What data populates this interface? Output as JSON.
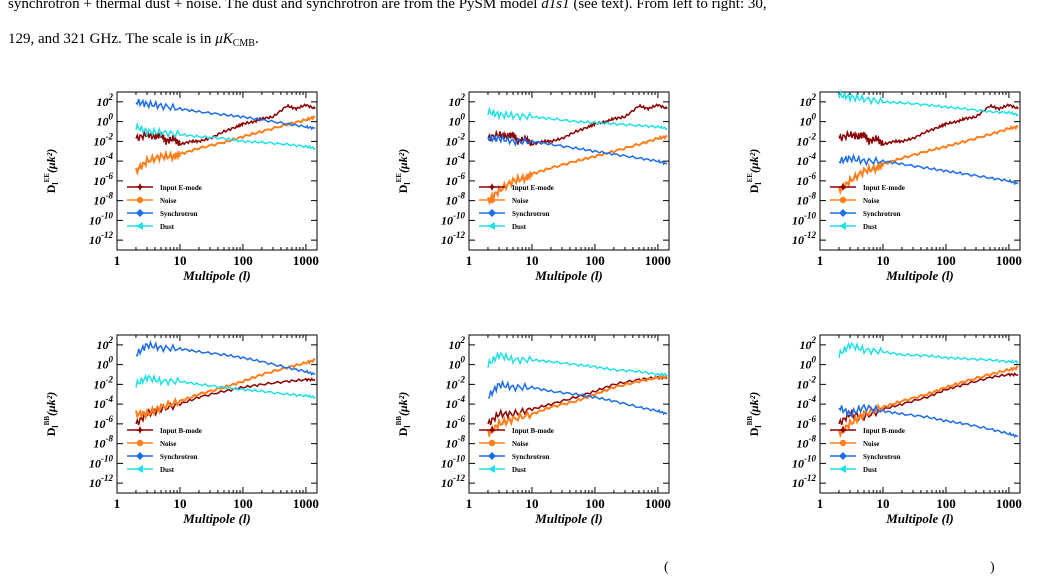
{
  "caption": {
    "line1": "synchrotron + thermal dust + noise. The dust and synchrotron are from the PySM model ",
    "model": "d1s1",
    "line1_tail": " (see text). From left to right: 30,",
    "line2": "129, and 321 GHz. The scale is in ",
    "unit_mu": "μK",
    "unit_sub": "CMB",
    "unit_tail": "."
  },
  "footer": {
    "open_paren": "(",
    "close_paren": ")"
  },
  "axis": {
    "xlabel": "Multipole (l)",
    "xticks": [
      "1",
      "10",
      "100",
      "1000"
    ],
    "yticks": [
      "10^2",
      "10^0",
      "10^-2",
      "10^-4",
      "10^-6",
      "10^-8",
      "10^-10",
      "10^-12"
    ]
  },
  "colors": {
    "input": "#8b0000",
    "noise": "#ff7f1e",
    "synchrotron": "#1e6ee6",
    "dust": "#22e0e6"
  },
  "chart_data": [
    {
      "type": "line",
      "row": "E",
      "ylabel": "D_l^EE(μk²)",
      "xlog": true,
      "ylog": true,
      "xlim": [
        1,
        1500
      ],
      "ylim": [
        1e-13,
        1000.0
      ],
      "legend": [
        "Input E-mode",
        "Noise",
        "Synchrotron",
        "Dust"
      ],
      "series": [
        {
          "name": "Input E-mode",
          "x": [
            2,
            3,
            4,
            5,
            6,
            8,
            10,
            15,
            20,
            30,
            50,
            80,
            100,
            150,
            200,
            300,
            500,
            700,
            1000,
            1400
          ],
          "y": [
            0.02,
            0.05,
            0.03,
            0.05,
            0.01,
            0.02,
            0.005,
            0.01,
            0.01,
            0.02,
            0.1,
            0.3,
            0.6,
            1,
            2,
            3,
            40,
            20,
            50,
            20
          ]
        },
        {
          "name": "Noise",
          "x": [
            2,
            3,
            5,
            8,
            10,
            20,
            50,
            100,
            200,
            500,
            1000,
            1400
          ],
          "y": [
            1e-05,
            0.0001,
            0.0003,
            0.0003,
            0.0005,
            0.002,
            0.008,
            0.03,
            0.1,
            0.5,
            1.5,
            3
          ]
        },
        {
          "name": "Synchrotron",
          "x": [
            2,
            3,
            5,
            10,
            20,
            50,
            100,
            200,
            500,
            1000,
            1400
          ],
          "y": [
            100,
            60,
            40,
            20,
            10,
            5,
            3,
            1.5,
            0.6,
            0.3,
            0.2
          ]
        },
        {
          "name": "Dust",
          "x": [
            2,
            3,
            5,
            10,
            20,
            50,
            100,
            200,
            500,
            1000,
            1400
          ],
          "y": [
            0.3,
            0.1,
            0.08,
            0.05,
            0.03,
            0.02,
            0.01,
            0.008,
            0.005,
            0.003,
            0.002
          ]
        }
      ]
    },
    {
      "type": "line",
      "row": "E",
      "ylabel": "D_l^EE(μk²)",
      "xlog": true,
      "ylog": true,
      "xlim": [
        1,
        1500
      ],
      "ylim": [
        1e-13,
        1000.0
      ],
      "legend": [
        "Input E-mode",
        "Noise",
        "Synchrotron",
        "Dust"
      ],
      "series": [
        {
          "name": "Input E-mode",
          "x": [
            2,
            3,
            4,
            5,
            6,
            8,
            10,
            15,
            20,
            30,
            50,
            80,
            100,
            150,
            200,
            300,
            500,
            700,
            1000,
            1400
          ],
          "y": [
            0.02,
            0.05,
            0.03,
            0.05,
            0.01,
            0.02,
            0.005,
            0.01,
            0.01,
            0.02,
            0.1,
            0.3,
            0.6,
            1,
            2,
            3,
            40,
            20,
            50,
            20
          ]
        },
        {
          "name": "Noise",
          "x": [
            2,
            3,
            5,
            8,
            10,
            20,
            50,
            100,
            200,
            500,
            1000,
            1400
          ],
          "y": [
            1e-08,
            1e-07,
            1e-06,
            2e-06,
            5e-06,
            2e-05,
            0.0001,
            0.0003,
            0.001,
            0.005,
            0.02,
            0.03
          ]
        },
        {
          "name": "Synchrotron",
          "x": [
            2,
            3,
            5,
            10,
            20,
            50,
            100,
            200,
            500,
            1000,
            1400
          ],
          "y": [
            0.02,
            0.02,
            0.01,
            0.01,
            0.005,
            0.002,
            0.001,
            0.0005,
            0.0002,
            0.0001,
            5e-05
          ]
        },
        {
          "name": "Dust",
          "x": [
            2,
            3,
            5,
            10,
            20,
            50,
            100,
            200,
            500,
            1000,
            1400
          ],
          "y": [
            10,
            5,
            4,
            3,
            2,
            1,
            0.8,
            0.6,
            0.4,
            0.3,
            0.2
          ]
        }
      ]
    },
    {
      "type": "line",
      "row": "E",
      "ylabel": "D_l^EE(μk²)",
      "xlog": true,
      "ylog": true,
      "xlim": [
        1,
        1500
      ],
      "ylim": [
        1e-13,
        1000.0
      ],
      "legend": [
        "Input E-mode",
        "Noise",
        "Synchrotron",
        "Dust"
      ],
      "series": [
        {
          "name": "Input E-mode",
          "x": [
            2,
            3,
            4,
            5,
            6,
            8,
            10,
            15,
            20,
            30,
            50,
            80,
            100,
            150,
            200,
            300,
            500,
            700,
            1000,
            1400
          ],
          "y": [
            0.02,
            0.05,
            0.03,
            0.05,
            0.01,
            0.02,
            0.005,
            0.01,
            0.01,
            0.02,
            0.1,
            0.3,
            0.6,
            1,
            2,
            3,
            40,
            20,
            50,
            20
          ]
        },
        {
          "name": "Noise",
          "x": [
            2,
            3,
            5,
            8,
            10,
            20,
            50,
            100,
            200,
            500,
            1000,
            1400
          ],
          "y": [
            1e-07,
            1e-06,
            1e-05,
            2e-05,
            5e-05,
            0.0002,
            0.001,
            0.003,
            0.01,
            0.05,
            0.2,
            0.3
          ]
        },
        {
          "name": "Synchrotron",
          "x": [
            2,
            3,
            5,
            10,
            20,
            50,
            100,
            200,
            500,
            1000,
            1400
          ],
          "y": [
            0.0001,
            0.0002,
            0.0001,
            0.0001,
            5e-05,
            2e-05,
            1e-05,
            5e-06,
            2e-06,
            1e-06,
            5e-07
          ]
        },
        {
          "name": "Dust",
          "x": [
            2,
            3,
            5,
            10,
            20,
            50,
            100,
            200,
            500,
            1000,
            1400
          ],
          "y": [
            500,
            300,
            200,
            100,
            80,
            50,
            30,
            20,
            10,
            8,
            5
          ]
        }
      ]
    },
    {
      "type": "line",
      "row": "B",
      "ylabel": "D_l^BB(μk²)",
      "xlog": true,
      "ylog": true,
      "xlim": [
        1,
        1500
      ],
      "ylim": [
        1e-13,
        1000.0
      ],
      "legend": [
        "Input B-mode",
        "Noise",
        "Synchrotron",
        "Dust"
      ],
      "series": [
        {
          "name": "Input B-mode",
          "x": [
            2,
            3,
            5,
            10,
            20,
            50,
            100,
            200,
            500,
            1000,
            1400
          ],
          "y": [
            1e-06,
            1e-05,
            3e-05,
            0.0001,
            0.0005,
            0.002,
            0.005,
            0.01,
            0.02,
            0.03,
            0.03
          ]
        },
        {
          "name": "Noise",
          "x": [
            2,
            3,
            5,
            10,
            20,
            50,
            100,
            200,
            500,
            1000,
            1400
          ],
          "y": [
            1e-05,
            1e-05,
            5e-05,
            0.0002,
            0.001,
            0.005,
            0.02,
            0.1,
            0.5,
            1.5,
            3
          ]
        },
        {
          "name": "Synchrotron",
          "x": [
            2,
            3,
            5,
            10,
            20,
            50,
            100,
            200,
            500,
            1000,
            1400
          ],
          "y": [
            10,
            100,
            50,
            40,
            20,
            10,
            5,
            2,
            0.5,
            0.2,
            0.1
          ]
        },
        {
          "name": "Dust",
          "x": [
            2,
            3,
            5,
            10,
            20,
            50,
            100,
            200,
            500,
            1000,
            1400
          ],
          "y": [
            0.01,
            0.05,
            0.02,
            0.02,
            0.01,
            0.005,
            0.003,
            0.002,
            0.001,
            0.0007,
            0.0005
          ]
        }
      ]
    },
    {
      "type": "line",
      "row": "B",
      "ylabel": "D_l^BB(μk²)",
      "xlog": true,
      "ylog": true,
      "xlim": [
        1,
        1500
      ],
      "ylim": [
        1e-13,
        1000.0
      ],
      "legend": [
        "Input B-mode",
        "Noise",
        "Synchrotron",
        "Dust"
      ],
      "series": [
        {
          "name": "Input B-mode",
          "x": [
            2,
            3,
            5,
            10,
            20,
            50,
            100,
            200,
            500,
            1000,
            1400
          ],
          "y": [
            1e-06,
            1e-05,
            1e-05,
            3e-05,
            0.0001,
            0.0005,
            0.002,
            0.01,
            0.03,
            0.05,
            0.05
          ]
        },
        {
          "name": "Noise",
          "x": [
            2,
            3,
            5,
            10,
            20,
            50,
            100,
            200,
            500,
            1000,
            1400
          ],
          "y": [
            1e-07,
            1e-06,
            3e-06,
            1e-05,
            5e-05,
            0.0002,
            0.001,
            0.005,
            0.02,
            0.05,
            0.06
          ]
        },
        {
          "name": "Synchrotron",
          "x": [
            2,
            3,
            5,
            10,
            20,
            50,
            100,
            200,
            500,
            1000,
            1400
          ],
          "y": [
            0.0005,
            0.01,
            0.005,
            0.005,
            0.002,
            0.001,
            0.0005,
            0.0002,
            5e-05,
            2e-05,
            1e-05
          ]
        },
        {
          "name": "Dust",
          "x": [
            2,
            3,
            5,
            10,
            20,
            50,
            100,
            200,
            500,
            1000,
            1400
          ],
          "y": [
            1,
            10,
            3,
            3,
            2,
            1,
            0.6,
            0.3,
            0.2,
            0.1,
            0.1
          ]
        }
      ]
    },
    {
      "type": "line",
      "row": "B",
      "ylabel": "D_l^BB(μk²)",
      "xlog": true,
      "ylog": true,
      "xlim": [
        1,
        1500
      ],
      "ylim": [
        1e-13,
        1000.0
      ],
      "legend": [
        "Input B-mode",
        "Noise",
        "Synchrotron",
        "Dust"
      ],
      "series": [
        {
          "name": "Input B-mode",
          "x": [
            2,
            3,
            5,
            10,
            20,
            50,
            100,
            200,
            500,
            1000,
            1400
          ],
          "y": [
            1e-06,
            1e-05,
            5e-06,
            3e-05,
            0.0001,
            0.0005,
            0.003,
            0.01,
            0.05,
            0.1,
            0.1
          ]
        },
        {
          "name": "Noise",
          "x": [
            2,
            3,
            5,
            10,
            20,
            50,
            100,
            200,
            500,
            1000,
            1400
          ],
          "y": [
            1e-07,
            1e-06,
            1e-05,
            5e-05,
            0.0002,
            0.001,
            0.005,
            0.02,
            0.1,
            0.3,
            0.5
          ]
        },
        {
          "name": "Synchrotron",
          "x": [
            2,
            3,
            5,
            10,
            20,
            50,
            100,
            200,
            500,
            1000,
            1400
          ],
          "y": [
            5e-05,
            1e-05,
            5e-05,
            2e-05,
            1e-05,
            5e-06,
            2e-06,
            1e-06,
            3e-07,
            1e-07,
            5e-08
          ]
        },
        {
          "name": "Dust",
          "x": [
            2,
            3,
            5,
            10,
            20,
            50,
            100,
            200,
            500,
            1000,
            1400
          ],
          "y": [
            10,
            100,
            30,
            20,
            10,
            8,
            5,
            4,
            3,
            2,
            2
          ]
        }
      ]
    }
  ]
}
